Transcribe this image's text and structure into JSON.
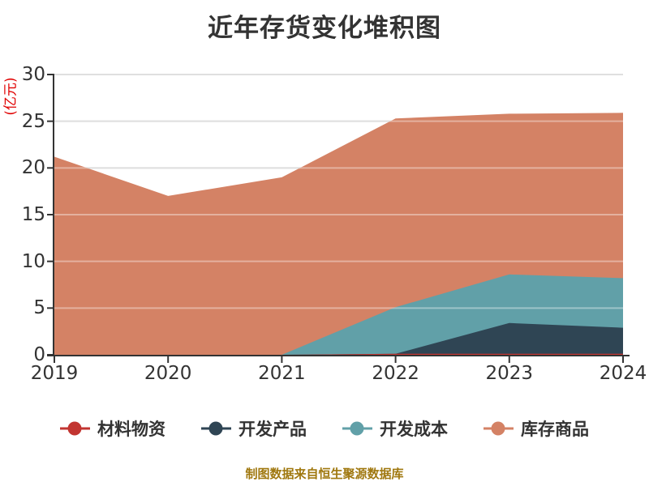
{
  "footer": "制图数据来自恒生聚源数据库",
  "colors": {
    "background": "#ffffff",
    "title_text": "#333333",
    "axis_line": "#333333",
    "axis_label_text": "#333333",
    "grid_line": "#cccccc",
    "y_axis_name_text": "#e00000",
    "footer_text": "#a0780f"
  },
  "chart_data": {
    "type": "area",
    "stacked": true,
    "title": "近年存货变化堆积图",
    "ylabel": "(亿元)",
    "xlabel": "",
    "categories": [
      "2019",
      "2020",
      "2021",
      "2022",
      "2023",
      "2024"
    ],
    "series": [
      {
        "name": "材料物资",
        "color": "#c23531",
        "values": [
          0,
          0,
          0,
          0.1,
          0.1,
          0.1
        ]
      },
      {
        "name": "开发产品",
        "color": "#2f4554",
        "values": [
          0,
          0,
          0,
          0,
          3.3,
          2.8
        ]
      },
      {
        "name": "开发成本",
        "color": "#61a0a8",
        "values": [
          0,
          0,
          0,
          5.0,
          5.2,
          5.3
        ]
      },
      {
        "name": "库存商品",
        "color": "#d48265",
        "values": [
          21.2,
          17.0,
          19.0,
          20.2,
          17.2,
          17.7
        ]
      }
    ],
    "stacked_totals": [
      21.2,
      17.0,
      19.0,
      25.3,
      25.8,
      25.9
    ],
    "ylim": [
      0,
      30
    ],
    "yticks": [
      0,
      5,
      10,
      15,
      20,
      25,
      30
    ],
    "grid": true,
    "legend_position": "bottom",
    "legend": [
      "材料物资",
      "开发产品",
      "开发成本",
      "库存商品"
    ]
  }
}
